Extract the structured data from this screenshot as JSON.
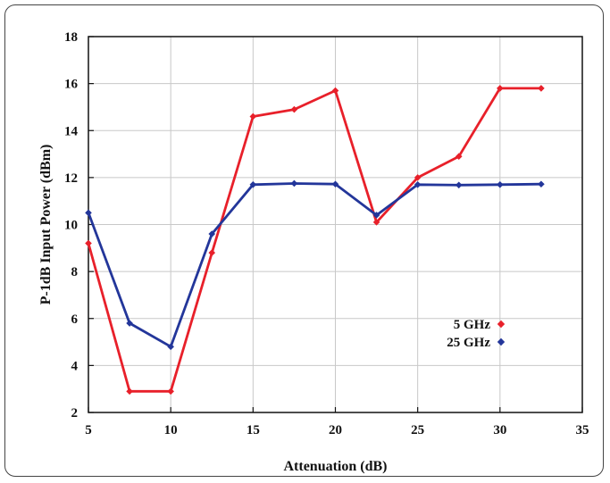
{
  "chart_data": {
    "type": "line",
    "xlabel": "Attenuation (dB)",
    "ylabel": "P-1dB Input Power (dBm)",
    "xlim": [
      5,
      35
    ],
    "ylim": [
      2,
      18
    ],
    "x_ticks": [
      5,
      10,
      15,
      20,
      25,
      30,
      35
    ],
    "y_ticks": [
      2,
      4,
      6,
      8,
      10,
      12,
      14,
      16,
      18
    ],
    "grid": true,
    "legend_position": "right-middle",
    "series": [
      {
        "name": "5 GHz",
        "color": "#e8202a",
        "x": [
          5,
          7.5,
          10,
          12.5,
          15,
          17.5,
          20,
          22.5,
          25,
          27.5,
          30,
          32.5
        ],
        "y": [
          9.2,
          2.9,
          2.9,
          8.8,
          14.6,
          14.9,
          15.7,
          10.1,
          12.0,
          12.9,
          15.8,
          15.8
        ]
      },
      {
        "name": "25 GHz",
        "color": "#23369a",
        "x": [
          5,
          7.5,
          10,
          12.5,
          15,
          17.5,
          20,
          22.5,
          25,
          27.5,
          30,
          32.5
        ],
        "y": [
          10.5,
          5.8,
          4.8,
          9.6,
          11.7,
          11.75,
          11.72,
          10.4,
          11.7,
          11.68,
          11.7,
          11.72
        ]
      }
    ]
  }
}
